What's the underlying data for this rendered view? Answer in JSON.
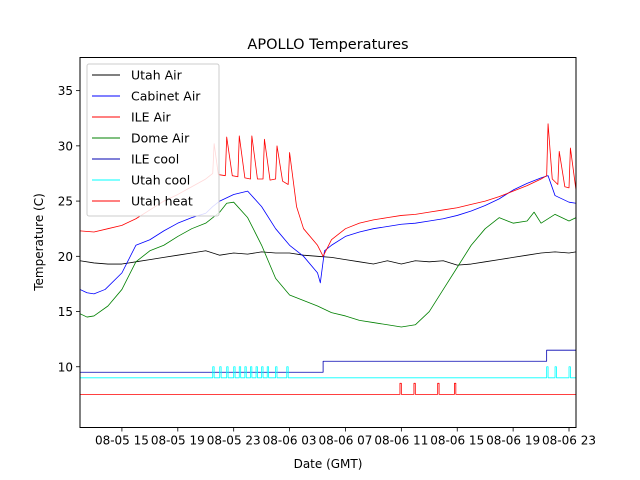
{
  "chart_data": {
    "type": "line",
    "title": "APOLLO Temperatures",
    "xlabel": "Date (GMT)",
    "ylabel": "Temperature (C)",
    "x_unit": "hours since 08-05 00:00 GMT",
    "xlim": [
      12.0,
      47.5
    ],
    "ylim": [
      4.5,
      38.0
    ],
    "grid": false,
    "legend_position": "top-left",
    "x_ticks": [
      {
        "value": 15,
        "label": "08-05 15"
      },
      {
        "value": 19,
        "label": "08-05 19"
      },
      {
        "value": 23,
        "label": "08-05 23"
      },
      {
        "value": 27,
        "label": "08-06 03"
      },
      {
        "value": 31,
        "label": "08-06 07"
      },
      {
        "value": 35,
        "label": "08-06 11"
      },
      {
        "value": 39,
        "label": "08-06 15"
      },
      {
        "value": 43,
        "label": "08-06 19"
      },
      {
        "value": 47,
        "label": "08-06 23"
      }
    ],
    "y_ticks": [
      {
        "value": 10,
        "label": "10"
      },
      {
        "value": 15,
        "label": "15"
      },
      {
        "value": 20,
        "label": "20"
      },
      {
        "value": 25,
        "label": "25"
      },
      {
        "value": 30,
        "label": "30"
      },
      {
        "value": 35,
        "label": "35"
      }
    ],
    "series": [
      {
        "name": "Utah Air",
        "color": "#000000",
        "x": [
          12,
          13,
          14,
          15,
          16,
          17,
          18,
          19,
          20,
          21,
          22,
          23,
          24,
          25,
          26,
          27,
          28,
          29,
          30,
          31,
          32,
          33,
          34,
          35,
          36,
          37,
          38,
          39,
          40,
          41,
          42,
          43,
          44,
          45,
          46,
          47,
          47.5
        ],
        "y": [
          19.6,
          19.4,
          19.3,
          19.3,
          19.5,
          19.7,
          19.9,
          20.1,
          20.3,
          20.5,
          20.1,
          20.3,
          20.2,
          20.4,
          20.3,
          20.3,
          20.1,
          20.0,
          19.9,
          19.7,
          19.5,
          19.3,
          19.6,
          19.3,
          19.6,
          19.5,
          19.6,
          19.2,
          19.3,
          19.5,
          19.7,
          19.9,
          20.1,
          20.3,
          20.4,
          20.3,
          20.4
        ]
      },
      {
        "name": "Cabinet Air",
        "color": "#0000ff",
        "x": [
          12,
          12.5,
          13,
          13.8,
          15,
          16,
          17,
          18,
          19,
          20,
          21,
          21.5,
          22,
          23,
          24,
          25,
          26,
          27,
          28,
          29,
          29.2,
          29.5,
          30,
          31,
          32,
          33,
          34,
          35,
          36,
          37,
          38,
          39,
          40,
          41,
          42,
          43,
          44,
          45,
          45.5,
          46,
          47,
          47.5
        ],
        "y": [
          17.0,
          16.7,
          16.6,
          17.0,
          18.5,
          21.0,
          21.5,
          22.3,
          23.0,
          23.5,
          23.9,
          24.5,
          25.0,
          25.6,
          25.9,
          24.5,
          22.5,
          21.0,
          20.0,
          18.5,
          17.6,
          20.5,
          21.0,
          21.8,
          22.2,
          22.5,
          22.7,
          22.9,
          23.0,
          23.2,
          23.4,
          23.7,
          24.1,
          24.6,
          25.2,
          26.0,
          26.6,
          27.1,
          27.3,
          25.5,
          24.9,
          24.8
        ]
      },
      {
        "name": "ILE Air",
        "color": "#ff0000",
        "x": [
          12,
          13,
          14,
          15,
          16,
          17,
          18,
          19,
          20,
          21,
          21.5,
          21.6,
          21.9,
          22.4,
          22.5,
          22.9,
          23.3,
          23.4,
          23.8,
          24.2,
          24.3,
          24.7,
          25.1,
          25.2,
          25.6,
          26.0,
          26.1,
          26.5,
          26.9,
          27.0,
          27.5,
          28.0,
          29.0,
          29.4,
          30.0,
          31.0,
          32.0,
          33.0,
          34.0,
          35.0,
          36.0,
          37.0,
          38.0,
          39.0,
          40.0,
          41.0,
          42.0,
          43.0,
          44.0,
          45.0,
          45.4,
          45.5,
          45.8,
          46.2,
          46.3,
          46.7,
          47.0,
          47.1,
          47.5
        ],
        "y": [
          22.3,
          22.2,
          22.5,
          22.8,
          23.4,
          24.2,
          25.0,
          25.6,
          26.3,
          27.0,
          27.5,
          30.2,
          27.4,
          27.3,
          30.8,
          27.3,
          27.2,
          30.9,
          27.1,
          27.0,
          30.9,
          27.0,
          27.0,
          30.6,
          26.9,
          27.0,
          30.0,
          26.8,
          26.5,
          29.4,
          24.5,
          22.5,
          21.0,
          20.0,
          21.5,
          22.5,
          23.0,
          23.3,
          23.5,
          23.7,
          23.8,
          24.0,
          24.2,
          24.4,
          24.7,
          25.0,
          25.4,
          25.9,
          26.4,
          27.0,
          27.3,
          32.0,
          27.0,
          26.5,
          29.5,
          26.3,
          26.2,
          29.8,
          26.0
        ]
      },
      {
        "name": "Dome Air",
        "color": "#008000",
        "x": [
          12,
          12.5,
          13,
          14,
          15,
          16,
          17,
          18,
          19,
          20,
          21,
          22,
          22.5,
          23,
          24,
          25,
          26,
          27,
          28,
          29,
          30,
          31,
          32,
          33,
          34,
          35,
          36,
          37,
          38,
          39,
          40,
          41,
          42,
          43,
          44,
          44.5,
          45,
          46,
          47,
          47.5
        ],
        "y": [
          14.8,
          14.5,
          14.6,
          15.5,
          17.0,
          19.5,
          20.5,
          21.0,
          21.8,
          22.5,
          23.0,
          24.0,
          24.8,
          24.9,
          23.5,
          21.0,
          18.0,
          16.5,
          16.0,
          15.5,
          14.9,
          14.6,
          14.2,
          14.0,
          13.8,
          13.6,
          13.8,
          15.0,
          17.0,
          19.0,
          21.0,
          22.5,
          23.5,
          23.0,
          23.2,
          24.0,
          23.0,
          23.8,
          23.2,
          23.5
        ]
      },
      {
        "name": "ILE cool",
        "color": "#0000b0",
        "x": [
          12,
          29.4,
          29.4,
          45.4,
          45.4,
          47.5
        ],
        "y": [
          9.5,
          9.5,
          10.5,
          10.5,
          11.5,
          11.5
        ]
      },
      {
        "name": "Utah cool",
        "color": "#00ffff",
        "x": [
          12,
          21.5,
          21.5,
          21.6,
          21.6,
          22.0,
          22.0,
          22.1,
          22.1,
          22.5,
          22.5,
          22.6,
          22.6,
          23.0,
          23.0,
          23.1,
          23.1,
          23.4,
          23.4,
          23.5,
          23.5,
          23.8,
          23.8,
          23.9,
          23.9,
          24.2,
          24.2,
          24.3,
          24.3,
          24.6,
          24.6,
          24.7,
          24.7,
          25.0,
          25.0,
          25.1,
          25.1,
          25.4,
          25.4,
          25.5,
          25.5,
          26.0,
          26.0,
          26.1,
          26.1,
          26.8,
          26.8,
          26.9,
          26.9,
          45.4,
          45.4,
          45.5,
          45.5,
          46.0,
          46.0,
          46.1,
          46.1,
          47.0,
          47.0,
          47.1,
          47.1,
          47.5
        ],
        "y": [
          9.0,
          9.0,
          10.0,
          10.0,
          9.0,
          9.0,
          10.0,
          10.0,
          9.0,
          9.0,
          10.0,
          10.0,
          9.0,
          9.0,
          10.0,
          10.0,
          9.0,
          9.0,
          10.0,
          10.0,
          9.0,
          9.0,
          10.0,
          10.0,
          9.0,
          9.0,
          10.0,
          10.0,
          9.0,
          9.0,
          10.0,
          10.0,
          9.0,
          9.0,
          10.0,
          10.0,
          9.0,
          9.0,
          10.0,
          10.0,
          9.0,
          9.0,
          10.0,
          10.0,
          9.0,
          9.0,
          10.0,
          10.0,
          9.0,
          9.0,
          10.0,
          10.0,
          9.0,
          9.0,
          10.0,
          10.0,
          9.0,
          9.0,
          10.0,
          10.0,
          9.0,
          9.0
        ]
      },
      {
        "name": "Utah heat",
        "color": "#ff0000",
        "x": [
          12,
          34.9,
          34.9,
          35.0,
          35.0,
          35.9,
          35.9,
          36.0,
          36.0,
          37.6,
          37.6,
          37.7,
          37.7,
          38.8,
          38.8,
          38.9,
          38.9,
          47.5
        ],
        "y": [
          7.5,
          7.5,
          8.5,
          8.5,
          7.5,
          7.5,
          8.5,
          8.5,
          7.5,
          7.5,
          8.5,
          8.5,
          7.5,
          7.5,
          8.5,
          8.5,
          7.5,
          7.5
        ]
      }
    ]
  }
}
